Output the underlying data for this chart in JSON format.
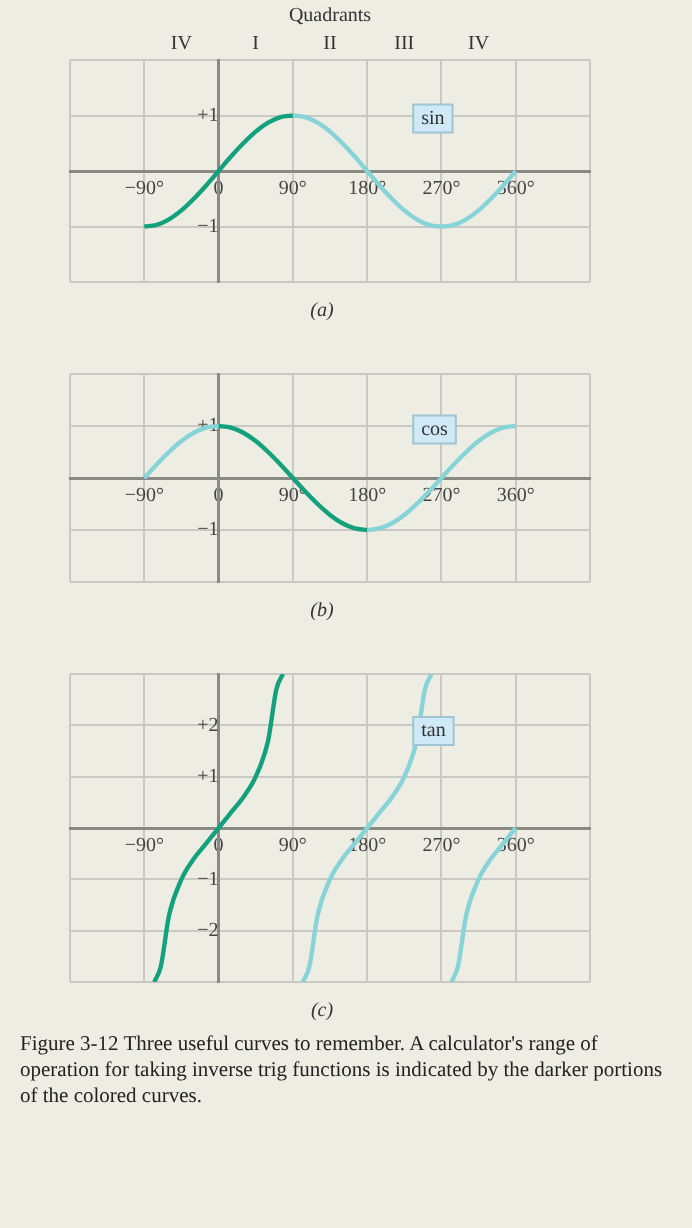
{
  "chart_data": [
    {
      "type": "line",
      "title": "Quadrants",
      "xlabel": "(a)",
      "xlim": [
        -180,
        450
      ],
      "xticks": [
        {
          "value": -180,
          "label": null
        },
        {
          "value": -90,
          "label": "−90°"
        },
        {
          "value": 0,
          "label": "0"
        },
        {
          "value": 90,
          "label": "90°"
        },
        {
          "value": 180,
          "label": "180°"
        },
        {
          "value": 270,
          "label": "270°"
        },
        {
          "value": 360,
          "label": "360°"
        },
        {
          "value": 450,
          "label": null
        }
      ],
      "ylim": [
        -2,
        2
      ],
      "yticks": [
        {
          "value": -2,
          "label": null
        },
        {
          "value": -1,
          "label": "−1"
        },
        {
          "value": 0,
          "label": null
        },
        {
          "value": 1,
          "label": "+1"
        },
        {
          "value": 2,
          "label": null
        }
      ],
      "grid": true,
      "legend": false,
      "annotations": [
        "sin",
        "IV",
        "I",
        "II",
        "III",
        "IV"
      ],
      "series": [
        {
          "color": "#13a07c",
          "x": [
            -90,
            -75,
            -60,
            -45,
            -30,
            -15,
            0,
            15,
            30,
            45,
            60,
            75,
            90
          ],
          "values": [
            -1,
            -0.97,
            -0.87,
            -0.71,
            -0.5,
            -0.26,
            0,
            0.26,
            0.5,
            0.71,
            0.87,
            0.97,
            1
          ]
        },
        {
          "color": "#86d3d8",
          "x": [
            90,
            105,
            120,
            135,
            150,
            165,
            180,
            195,
            210,
            225,
            240,
            255,
            270,
            285,
            300,
            315,
            330,
            345,
            360
          ],
          "values": [
            1,
            0.97,
            0.87,
            0.71,
            0.5,
            0.26,
            0,
            -0.26,
            -0.5,
            -0.71,
            -0.87,
            -0.97,
            -1,
            -0.97,
            -0.87,
            -0.71,
            -0.5,
            -0.26,
            0
          ]
        }
      ]
    },
    {
      "type": "line",
      "xlabel": "(b)",
      "xlim": [
        -180,
        450
      ],
      "xticks": [
        {
          "value": -180,
          "label": null
        },
        {
          "value": -90,
          "label": "−90°"
        },
        {
          "value": 0,
          "label": "0"
        },
        {
          "value": 90,
          "label": "90°"
        },
        {
          "value": 180,
          "label": "180°"
        },
        {
          "value": 270,
          "label": "270°"
        },
        {
          "value": 360,
          "label": "360°"
        },
        {
          "value": 450,
          "label": null
        }
      ],
      "ylim": [
        -2,
        2
      ],
      "yticks": [
        {
          "value": -2,
          "label": null
        },
        {
          "value": -1,
          "label": "−1"
        },
        {
          "value": 0,
          "label": null
        },
        {
          "value": 1,
          "label": "+1"
        },
        {
          "value": 2,
          "label": null
        }
      ],
      "grid": true,
      "legend": false,
      "annotations": [
        "cos"
      ],
      "series": [
        {
          "color": "#86d3d8",
          "x": [
            -90,
            -75,
            -60,
            -45,
            -30,
            -15,
            0
          ],
          "values": [
            0,
            0.26,
            0.5,
            0.71,
            0.87,
            0.97,
            1
          ]
        },
        {
          "color": "#13a07c",
          "x": [
            0,
            15,
            30,
            45,
            60,
            75,
            90,
            105,
            120,
            135,
            150,
            165,
            180
          ],
          "values": [
            1,
            0.97,
            0.87,
            0.71,
            0.5,
            0.26,
            0,
            -0.26,
            -0.5,
            -0.71,
            -0.87,
            -0.97,
            -1
          ]
        },
        {
          "color": "#86d3d8",
          "x": [
            180,
            195,
            210,
            225,
            240,
            255,
            270,
            285,
            300,
            315,
            330,
            345,
            360
          ],
          "values": [
            -1,
            -0.97,
            -0.87,
            -0.71,
            -0.5,
            -0.26,
            0,
            0.26,
            0.5,
            0.71,
            0.87,
            0.97,
            1
          ]
        }
      ]
    },
    {
      "type": "line",
      "xlabel": "(c)",
      "xlim": [
        -180,
        450
      ],
      "xticks": [
        {
          "value": -180,
          "label": null
        },
        {
          "value": -90,
          "label": "−90°"
        },
        {
          "value": 0,
          "label": "0"
        },
        {
          "value": 90,
          "label": "90°"
        },
        {
          "value": 180,
          "label": "180°"
        },
        {
          "value": 270,
          "label": "270°"
        },
        {
          "value": 360,
          "label": "360°"
        },
        {
          "value": 450,
          "label": null
        }
      ],
      "ylim": [
        -3,
        3
      ],
      "yticks": [
        {
          "value": -3,
          "label": null
        },
        {
          "value": -2,
          "label": "−2"
        },
        {
          "value": -1,
          "label": "−1"
        },
        {
          "value": 0,
          "label": null
        },
        {
          "value": 1,
          "label": "+1"
        },
        {
          "value": 2,
          "label": "+2"
        },
        {
          "value": 3,
          "label": null
        }
      ],
      "grid": true,
      "legend": false,
      "annotations": [
        "tan",
        "Figure 3-12 Three useful curves to remember. A calculator's range of operation for taking inverse trig functions is indicated by the darker portions of the colored curves."
      ],
      "series": [
        {
          "color": "#13a07c",
          "x": [
            -78,
            -70,
            -60,
            -45,
            -30,
            -15,
            0,
            15,
            30,
            45,
            60,
            70,
            78
          ],
          "values": [
            -3,
            -2.7,
            -1.7,
            -1,
            -0.6,
            -0.3,
            0,
            0.3,
            0.6,
            1,
            1.7,
            2.7,
            3
          ]
        },
        {
          "color": "#86d3d8",
          "x": [
            102,
            110,
            120,
            135,
            150,
            165,
            180,
            195,
            210,
            225,
            240,
            250,
            258
          ],
          "values": [
            -3,
            -2.7,
            -1.7,
            -1,
            -0.6,
            -0.3,
            0,
            0.3,
            0.6,
            1,
            1.7,
            2.7,
            3
          ]
        },
        {
          "color": "#86d3d8",
          "x": [
            282,
            290,
            300,
            315,
            330,
            345,
            360
          ],
          "values": [
            -3,
            -2.7,
            -1.7,
            -1,
            -0.6,
            -0.3,
            0
          ]
        }
      ]
    }
  ]
}
